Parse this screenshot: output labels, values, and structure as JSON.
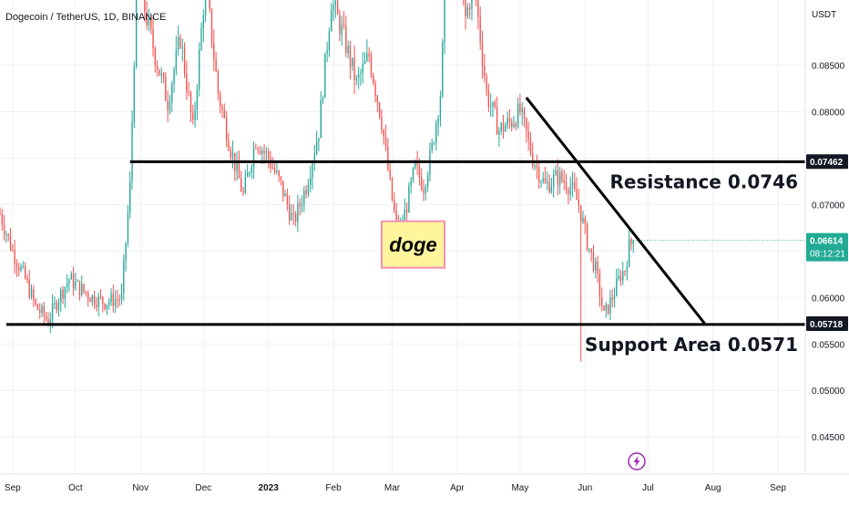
{
  "header": {
    "symbol_title": "Dogecoin / TetherUS, 1D, BINANCE"
  },
  "colors": {
    "up": "#26a69a",
    "down": "#ef5350",
    "line": "#000000",
    "badge_bg": "#131722",
    "price_badge_bg": "#22ab94",
    "doge_bg": "#fff59d",
    "doge_border": "#f48fb1",
    "flash": "#9c27b0"
  },
  "chart_data": {
    "type": "candlestick",
    "title": "Dogecoin / TetherUS, 1D, BINANCE",
    "y_axis": {
      "unit": "USDT",
      "ylim": [
        0.041,
        0.092
      ],
      "ticks": [
        "0.04500",
        "0.05000",
        "0.05500",
        "0.06000",
        "0.06500",
        "0.07000",
        "0.07500",
        "0.08000",
        "0.08500"
      ],
      "tick_values": [
        0.045,
        0.05,
        0.055,
        0.06,
        0.065,
        0.07,
        0.075,
        0.08,
        0.085
      ]
    },
    "x_axis": {
      "ticks": [
        "Sep",
        "Oct",
        "Nov",
        "Dec",
        "2023",
        "Feb",
        "Mar",
        "Apr",
        "May",
        "Jun",
        "Jul",
        "Aug",
        "Sep"
      ],
      "tick_positions_days": [
        0,
        30,
        61,
        91,
        122,
        153,
        181,
        212,
        242,
        273,
        303,
        334,
        365
      ],
      "range_days": [
        -6,
        378
      ]
    },
    "close_series": {
      "x_days": [
        -6,
        0,
        6,
        11,
        17,
        22,
        27,
        32,
        38,
        44,
        52,
        56,
        58,
        60,
        62,
        68,
        74,
        80,
        86,
        92,
        98,
        104,
        110,
        116,
        122,
        128,
        134,
        140,
        146,
        152,
        158,
        164,
        170,
        176,
        180,
        184,
        188,
        192,
        196,
        200,
        204,
        208,
        212,
        216,
        220,
        226,
        232,
        238,
        242,
        248,
        254,
        260,
        266,
        270,
        274,
        278,
        282,
        286,
        290,
        292,
        294,
        296
      ],
      "values": [
        0.069,
        0.065,
        0.062,
        0.059,
        0.0575,
        0.06,
        0.062,
        0.061,
        0.06,
        0.0595,
        0.06,
        0.072,
        0.086,
        0.096,
        0.092,
        0.086,
        0.081,
        0.088,
        0.078,
        0.094,
        0.082,
        0.076,
        0.071,
        0.077,
        0.075,
        0.072,
        0.068,
        0.072,
        0.078,
        0.092,
        0.088,
        0.083,
        0.086,
        0.079,
        0.072,
        0.066,
        0.07,
        0.074,
        0.072,
        0.076,
        0.082,
        0.1,
        0.095,
        0.09,
        0.094,
        0.082,
        0.078,
        0.079,
        0.08,
        0.075,
        0.072,
        0.073,
        0.072,
        0.07,
        0.066,
        0.063,
        0.058,
        0.06,
        0.0625,
        0.063,
        0.0655,
        0.06614
      ]
    },
    "lines": [
      {
        "name": "resistance",
        "y": 0.0746,
        "x_start_days": 56,
        "x_end_days": 378
      },
      {
        "name": "support",
        "y": 0.0571,
        "x_start_days": -3,
        "x_end_days": 378
      },
      {
        "name": "trendline",
        "x_start_days": 245,
        "y_start": 0.0815,
        "x_end_days": 330,
        "y_end": 0.0572
      }
    ],
    "annotations": {
      "resistance": "Resistance 0.0746",
      "support": "Support Area 0.0571",
      "doge": "doge"
    },
    "doge_box": {
      "x_days": [
        176,
        206
      ],
      "y": [
        0.0632,
        0.0682
      ]
    },
    "price_marks": {
      "resistance": {
        "label": "0.07462",
        "value": 0.07462
      },
      "support": {
        "label": "0.05718",
        "value": 0.05718
      },
      "current": {
        "label": "0.06614",
        "value": 0.06614,
        "countdown": "08:12:21"
      }
    }
  }
}
